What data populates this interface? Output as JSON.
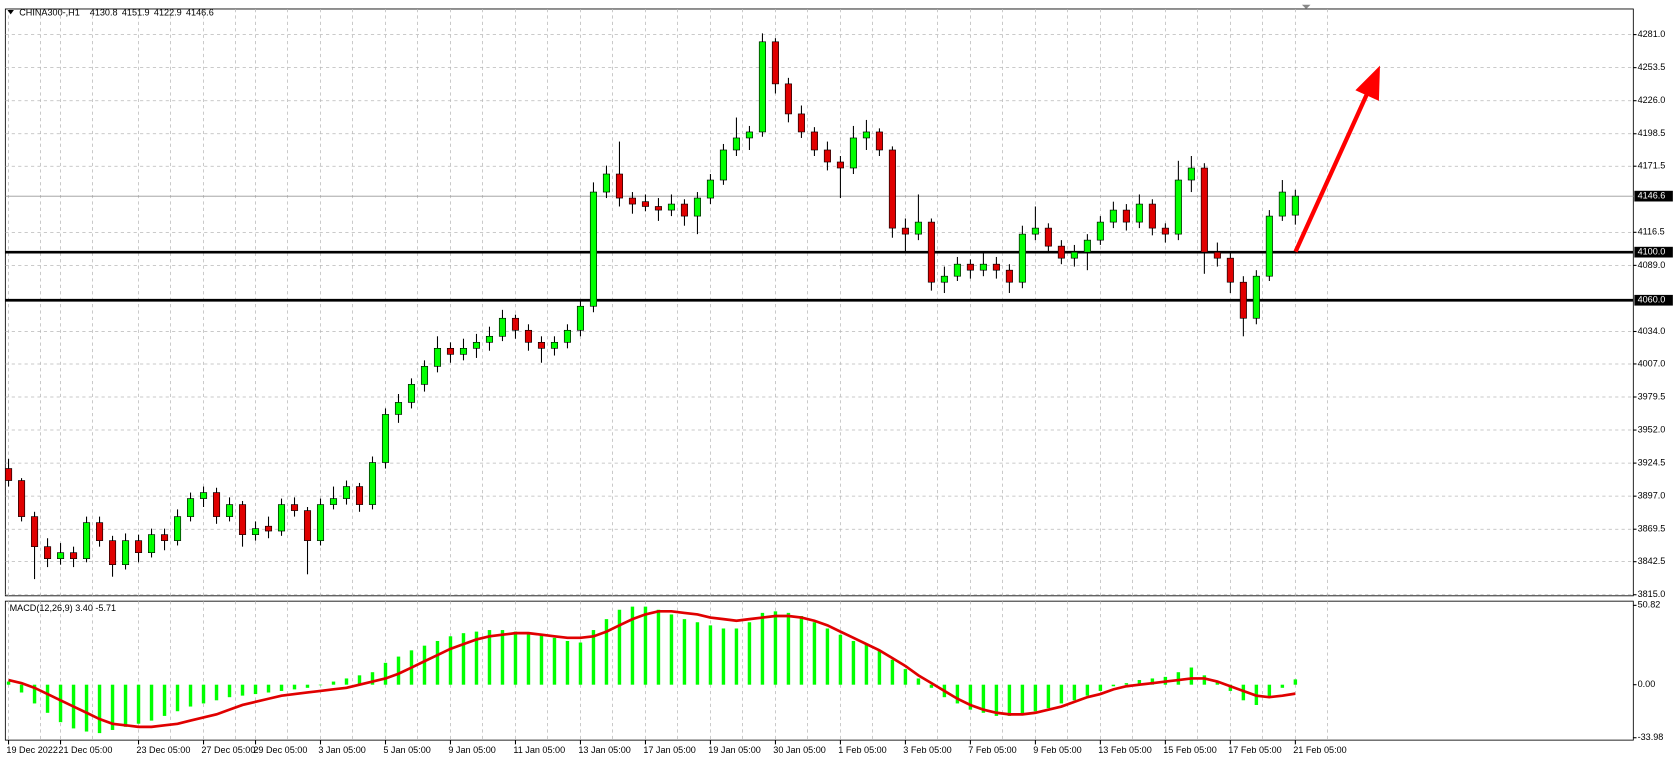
{
  "chart_data": {
    "type": "candlestick",
    "title": "CHINA300-,H1",
    "ohlc_header": [
      4130.8,
      4151.9,
      4122.9,
      4146.6
    ],
    "colors": {
      "up": "#00ff00",
      "down": "#e00000",
      "macd": "#00ff00",
      "signal": "#e00000"
    },
    "grid": true,
    "ylim": [
      3814.1,
      4302.3
    ],
    "yticks": [
      {
        "value": 4281,
        "label": "4281.0"
      },
      {
        "value": 4253.5,
        "label": "4253.5"
      },
      {
        "value": 4226,
        "label": "4226.0"
      },
      {
        "value": 4198.5,
        "label": "4198.5"
      },
      {
        "value": 4171.5,
        "label": "4171.5"
      },
      {
        "value": 4116.5,
        "label": "4116.5"
      },
      {
        "value": 4089,
        "label": "4089.0"
      },
      {
        "value": 4034,
        "label": "4034.0"
      },
      {
        "value": 4007,
        "label": "4007.0"
      },
      {
        "value": 3979.5,
        "label": "3979.5"
      },
      {
        "value": 3952,
        "label": "3952.0"
      },
      {
        "value": 3924.5,
        "label": "3924.5"
      },
      {
        "value": 3897,
        "label": "3897.0"
      },
      {
        "value": 3869.5,
        "label": "3869.5"
      },
      {
        "value": 3842.5,
        "label": "3842.5"
      },
      {
        "value": 3815,
        "label": "3815.0"
      }
    ],
    "levels": [
      {
        "value": 4100,
        "label": "4100.0"
      },
      {
        "value": 4060,
        "label": "4060.0"
      }
    ],
    "current_price": {
      "value": 4146.6,
      "label": "4146.6"
    },
    "categories": [
      "19 Dec 2022",
      null,
      null,
      null,
      "21 Dec 05:00",
      null,
      null,
      null,
      null,
      null,
      "23 Dec 05:00",
      null,
      null,
      null,
      null,
      "27 Dec 05:00",
      null,
      null,
      null,
      "29 Dec 05:00",
      null,
      null,
      null,
      null,
      "3 Jan 05:00",
      null,
      null,
      null,
      null,
      "5 Jan 05:00",
      null,
      null,
      null,
      null,
      "9 Jan 05:00",
      null,
      null,
      null,
      null,
      "11 Jan 05:00",
      null,
      null,
      null,
      null,
      "13 Jan 05:00",
      null,
      null,
      null,
      null,
      "17 Jan 05:00",
      null,
      null,
      null,
      null,
      "19 Jan 05:00",
      null,
      null,
      null,
      null,
      "30 Jan 05:00",
      null,
      null,
      null,
      null,
      "1 Feb 05:00",
      null,
      null,
      null,
      null,
      "3 Feb 05:00",
      null,
      null,
      null,
      null,
      "7 Feb 05:00",
      null,
      null,
      null,
      null,
      "9 Feb 05:00",
      null,
      null,
      null,
      null,
      "13 Feb 05:00",
      null,
      null,
      null,
      null,
      "15 Feb 05:00",
      null,
      null,
      null,
      null,
      "17 Feb 05:00",
      null,
      null,
      null,
      null,
      "21 Feb 05:00",
      null
    ],
    "candles": [
      [
        3920,
        3928,
        3905,
        3910
      ],
      [
        3910,
        3912,
        3876,
        3880
      ],
      [
        3880,
        3884,
        3828,
        3855
      ],
      [
        3855,
        3862,
        3838,
        3845
      ],
      [
        3845,
        3858,
        3840,
        3850
      ],
      [
        3850,
        3855,
        3838,
        3845
      ],
      [
        3845,
        3880,
        3842,
        3875
      ],
      [
        3875,
        3880,
        3855,
        3860
      ],
      [
        3860,
        3864,
        3830,
        3840
      ],
      [
        3840,
        3866,
        3836,
        3860
      ],
      [
        3860,
        3865,
        3842,
        3850
      ],
      [
        3850,
        3870,
        3846,
        3865
      ],
      [
        3865,
        3870,
        3852,
        3860
      ],
      [
        3860,
        3886,
        3856,
        3880
      ],
      [
        3880,
        3900,
        3876,
        3895
      ],
      [
        3895,
        3905,
        3888,
        3900
      ],
      [
        3900,
        3904,
        3874,
        3880
      ],
      [
        3880,
        3896,
        3876,
        3890
      ],
      [
        3890,
        3893,
        3855,
        3865
      ],
      [
        3865,
        3876,
        3860,
        3870
      ],
      [
        3872,
        3880,
        3862,
        3868
      ],
      [
        3868,
        3895,
        3864,
        3890
      ],
      [
        3890,
        3896,
        3880,
        3885
      ],
      [
        3885,
        3888,
        3832,
        3860
      ],
      [
        3860,
        3895,
        3856,
        3890
      ],
      [
        3890,
        3905,
        3886,
        3895
      ],
      [
        3895,
        3910,
        3890,
        3905
      ],
      [
        3905,
        3908,
        3884,
        3890
      ],
      [
        3890,
        3930,
        3886,
        3925
      ],
      [
        3925,
        3970,
        3920,
        3965
      ],
      [
        3965,
        3982,
        3958,
        3975
      ],
      [
        3975,
        3995,
        3970,
        3990
      ],
      [
        3990,
        4010,
        3984,
        4005
      ],
      [
        4005,
        4030,
        4000,
        4020
      ],
      [
        4020,
        4025,
        4008,
        4015
      ],
      [
        4015,
        4028,
        4010,
        4020
      ],
      [
        4020,
        4032,
        4012,
        4025
      ],
      [
        4025,
        4038,
        4018,
        4030
      ],
      [
        4030,
        4052,
        4026,
        4045
      ],
      [
        4045,
        4048,
        4028,
        4035
      ],
      [
        4035,
        4040,
        4018,
        4025
      ],
      [
        4025,
        4030,
        4008,
        4020
      ],
      [
        4020,
        4030,
        4014,
        4025
      ],
      [
        4025,
        4040,
        4020,
        4035
      ],
      [
        4035,
        4060,
        4030,
        4055
      ],
      [
        4055,
        4158,
        4050,
        4150
      ],
      [
        4150,
        4172,
        4145,
        4165
      ],
      [
        4165,
        4192,
        4138,
        4145
      ],
      [
        4145,
        4150,
        4132,
        4140
      ],
      [
        4142,
        4148,
        4134,
        4138
      ],
      [
        4138,
        4145,
        4126,
        4135
      ],
      [
        4135,
        4148,
        4130,
        4140
      ],
      [
        4140,
        4144,
        4122,
        4130
      ],
      [
        4130,
        4150,
        4115,
        4145
      ],
      [
        4145,
        4165,
        4140,
        4160
      ],
      [
        4160,
        4190,
        4156,
        4185
      ],
      [
        4185,
        4212,
        4180,
        4195
      ],
      [
        4195,
        4205,
        4185,
        4200
      ],
      [
        4200,
        4282,
        4196,
        4275
      ],
      [
        4275,
        4278,
        4232,
        4240
      ],
      [
        4240,
        4245,
        4208,
        4215
      ],
      [
        4215,
        4222,
        4195,
        4200
      ],
      [
        4200,
        4204,
        4180,
        4185
      ],
      [
        4185,
        4192,
        4168,
        4175
      ],
      [
        4175,
        4180,
        4145,
        4170
      ],
      [
        4170,
        4205,
        4165,
        4195
      ],
      [
        4195,
        4210,
        4185,
        4200
      ],
      [
        4200,
        4203,
        4180,
        4185
      ],
      [
        4185,
        4188,
        4112,
        4120
      ],
      [
        4120,
        4128,
        4100,
        4115
      ],
      [
        4115,
        4148,
        4110,
        4125
      ],
      [
        4125,
        4128,
        4068,
        4075
      ],
      [
        4075,
        4088,
        4066,
        4080
      ],
      [
        4080,
        4096,
        4076,
        4090
      ],
      [
        4090,
        4094,
        4078,
        4085
      ],
      [
        4085,
        4100,
        4080,
        4090
      ],
      [
        4090,
        4096,
        4078,
        4085
      ],
      [
        4085,
        4090,
        4066,
        4075
      ],
      [
        4075,
        4122,
        4070,
        4115
      ],
      [
        4115,
        4138,
        4110,
        4120
      ],
      [
        4120,
        4124,
        4100,
        4105
      ],
      [
        4105,
        4110,
        4090,
        4095
      ],
      [
        4095,
        4106,
        4088,
        4100
      ],
      [
        4100,
        4115,
        4085,
        4110
      ],
      [
        4110,
        4130,
        4106,
        4125
      ],
      [
        4125,
        4142,
        4120,
        4135
      ],
      [
        4135,
        4140,
        4118,
        4125
      ],
      [
        4125,
        4148,
        4120,
        4140
      ],
      [
        4140,
        4144,
        4114,
        4120
      ],
      [
        4120,
        4124,
        4108,
        4115
      ],
      [
        4115,
        4176,
        4110,
        4160
      ],
      [
        4160,
        4180,
        4150,
        4170
      ],
      [
        4170,
        4174,
        4082,
        4100
      ],
      [
        4100,
        4108,
        4088,
        4095
      ],
      [
        4095,
        4100,
        4066,
        4075
      ],
      [
        4075,
        4080,
        4030,
        4045
      ],
      [
        4045,
        4085,
        4040,
        4080
      ],
      [
        4080,
        4135,
        4076,
        4130
      ],
      [
        4130,
        4160,
        4126,
        4150
      ],
      [
        4130.8,
        4151.9,
        4122.9,
        4146.6
      ]
    ],
    "macd": {
      "title": "MACD(12,26,9) 3.40 -5.71",
      "ylim": [
        -35.5,
        53.5
      ],
      "yticks": [
        {
          "value": 50.82,
          "label": "50.82"
        },
        {
          "value": 0,
          "label": "0.00"
        },
        {
          "value": -33.98,
          "label": "-33.98"
        }
      ],
      "values": [
        2,
        -5,
        -12,
        -18,
        -24,
        -28,
        -30,
        -31,
        -29,
        -27,
        -25,
        -23,
        -20,
        -17,
        -14,
        -12,
        -10,
        -8,
        -7,
        -6,
        -5,
        -4,
        -3,
        -2,
        0,
        2,
        4,
        6,
        8,
        14,
        18,
        22,
        25,
        28,
        31,
        33,
        34,
        35,
        35,
        34,
        33,
        32,
        30,
        28,
        27,
        35,
        42,
        48,
        50,
        50,
        48,
        45,
        42,
        40,
        38,
        36,
        36,
        40,
        46,
        47,
        46,
        44,
        40,
        36,
        32,
        28,
        26,
        22,
        16,
        10,
        4,
        -2,
        -8,
        -12,
        -16,
        -18,
        -20,
        -20,
        -19,
        -17,
        -15,
        -12,
        -10,
        -7,
        -4,
        -1,
        1,
        3,
        4,
        5,
        8,
        11,
        6,
        2,
        -4,
        -10,
        -13,
        -8,
        -2,
        3.4
      ],
      "signal": [
        3,
        1,
        -2,
        -6,
        -10,
        -14,
        -18,
        -22,
        -25,
        -26,
        -27,
        -27,
        -26,
        -25,
        -23,
        -21,
        -19,
        -16,
        -13,
        -11,
        -9,
        -7,
        -6,
        -5,
        -4,
        -3,
        -2,
        0,
        2,
        4,
        7,
        11,
        15,
        19,
        23,
        26,
        29,
        31,
        32,
        33,
        33,
        32,
        31,
        30,
        30,
        31,
        34,
        38,
        42,
        45,
        47,
        47,
        46,
        45,
        43,
        42,
        41,
        42,
        43,
        44,
        44,
        43,
        41,
        38,
        34,
        30,
        26,
        22,
        17,
        12,
        6,
        1,
        -4,
        -9,
        -13,
        -16,
        -18,
        -19,
        -19,
        -18,
        -16,
        -14,
        -11,
        -8,
        -6,
        -3,
        -1,
        0,
        1,
        2,
        3,
        4,
        4,
        2,
        -1,
        -4,
        -7,
        -8,
        -7,
        -5.71
      ]
    }
  }
}
